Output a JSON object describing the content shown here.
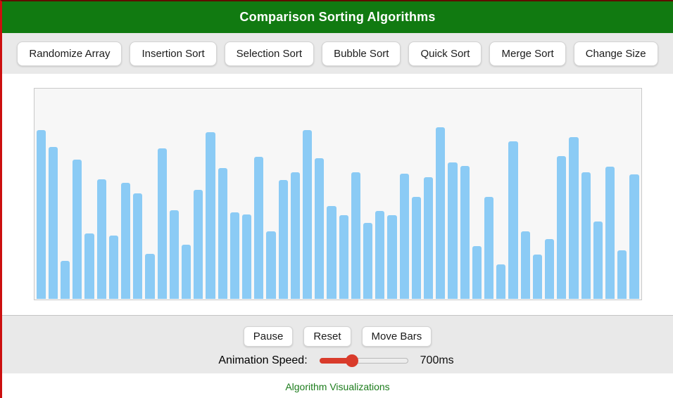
{
  "header": {
    "title": "Comparison Sorting Algorithms"
  },
  "toolbar": {
    "buttons": [
      {
        "name": "randomize-array",
        "label": "Randomize Array"
      },
      {
        "name": "insertion-sort",
        "label": "Insertion Sort"
      },
      {
        "name": "selection-sort",
        "label": "Selection Sort"
      },
      {
        "name": "bubble-sort",
        "label": "Bubble Sort"
      },
      {
        "name": "quick-sort",
        "label": "Quick Sort"
      },
      {
        "name": "merge-sort",
        "label": "Merge Sort"
      },
      {
        "name": "change-size",
        "label": "Change Size"
      }
    ]
  },
  "chart_data": {
    "type": "bar",
    "title": "",
    "xlabel": "",
    "ylabel": "",
    "grid": false,
    "legend": false,
    "ylim": [
      0,
      300
    ],
    "bar_color": "#8bcbf5",
    "values": [
      240,
      216,
      54,
      198,
      93,
      170,
      90,
      165,
      150,
      64,
      214,
      126,
      77,
      155,
      237,
      186,
      123,
      120,
      202,
      96,
      169,
      180,
      240,
      200,
      132,
      119,
      180,
      108,
      125,
      119,
      178,
      145,
      173,
      244,
      194,
      189,
      75,
      145,
      49,
      224,
      96,
      63,
      85,
      203,
      230,
      180,
      110,
      188,
      69,
      177
    ]
  },
  "controls": {
    "buttons": [
      {
        "name": "pause",
        "label": "Pause"
      },
      {
        "name": "reset",
        "label": "Reset"
      },
      {
        "name": "move-bars",
        "label": "Move Bars"
      }
    ],
    "speed": {
      "label": "Animation Speed:",
      "value_label": "700ms",
      "fill_percent": 37
    }
  },
  "footer": {
    "link_label": "Algorithm Visualizations"
  },
  "colors": {
    "header-green": "#117a11",
    "bar-blue": "#8bcbf5",
    "slider-red": "#d93b2b",
    "link-green": "#1c7c1c",
    "left-border-red": "#cc0f0f",
    "top-line-maroon": "#5e0e00"
  }
}
